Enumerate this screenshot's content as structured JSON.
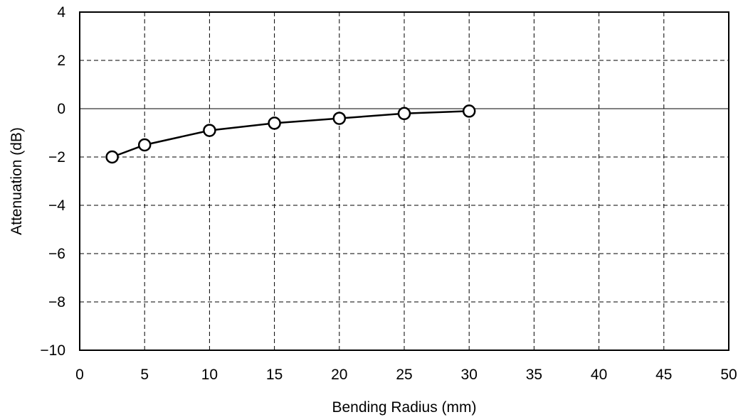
{
  "chart_data": {
    "type": "line",
    "title": "",
    "xlabel": "Bending Radius (mm)",
    "ylabel": "Attenuation (dB)",
    "xlim": [
      0,
      50
    ],
    "ylim": [
      -10,
      4
    ],
    "x_ticks": [
      0,
      5,
      10,
      15,
      20,
      25,
      30,
      35,
      40,
      45,
      50
    ],
    "y_ticks": [
      4,
      2,
      0,
      -2,
      -4,
      -6,
      -8,
      -10
    ],
    "x_tick_labels": [
      "0",
      "5",
      "10",
      "15",
      "20",
      "25",
      "30",
      "35",
      "40",
      "45",
      "50"
    ],
    "y_tick_labels": [
      "4",
      "2",
      "0",
      "−2",
      "−4",
      "−6",
      "−8",
      "−10"
    ],
    "grid": true,
    "grid_style": "dashed",
    "legend": false,
    "series": [
      {
        "x": [
          2.5,
          5,
          10,
          15,
          20,
          25,
          30
        ],
        "y": [
          -2.0,
          -1.5,
          -0.9,
          -0.6,
          -0.4,
          -0.2,
          -0.1
        ],
        "marker": "open-circle",
        "color": "#000000"
      }
    ]
  }
}
